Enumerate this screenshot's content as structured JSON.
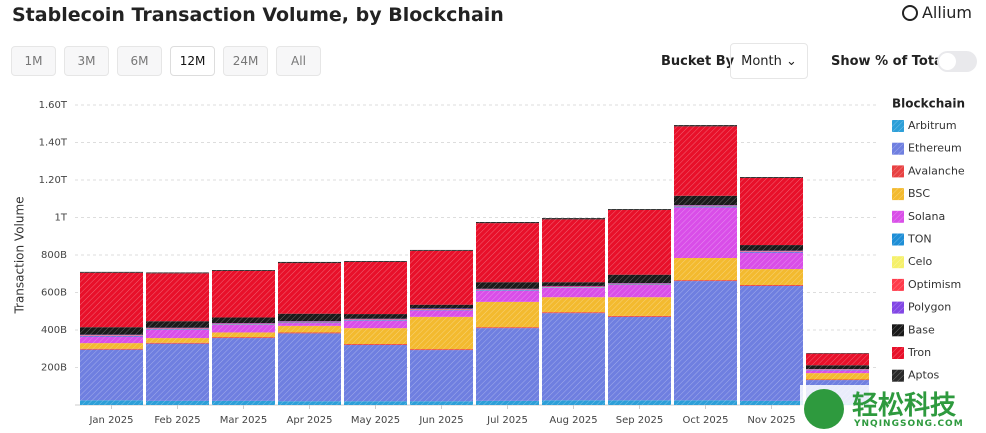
{
  "ui": {
    "logo": "Allium",
    "ranges": [
      "1M",
      "3M",
      "6M",
      "12M",
      "24M",
      "All"
    ],
    "bucket_label": "Bucket By",
    "bucket_value": "Month",
    "percent_label": "Show % of Total"
  },
  "watermark": {
    "text": "轻松科技",
    "url": "YNQINGSONG.COM"
  },
  "chart_data": {
    "type": "stacked-bar",
    "title": "Stablecoin Transaction Volume, by Blockchain",
    "y_label": "Transaction Volume",
    "legend_title": "Blockchain",
    "legend": "right",
    "grid": true,
    "categories": [
      "Jan 2025",
      "Feb 2025",
      "Mar 2025",
      "Apr 2025",
      "May 2025",
      "Jun 2025",
      "Jul 2025",
      "Aug 2025",
      "Sep 2025",
      "Oct 2025",
      "Nov 2025",
      null
    ],
    "ylim": [
      0,
      1600
    ],
    "yticks": [
      {
        "value": 200,
        "label": "200B"
      },
      {
        "value": 400,
        "label": "400B"
      },
      {
        "value": 600,
        "label": "600B"
      },
      {
        "value": 800,
        "label": "800B"
      },
      {
        "value": 1000,
        "label": "1T"
      },
      {
        "value": 1200,
        "label": "1.20T"
      },
      {
        "value": 1400,
        "label": "1.40T"
      },
      {
        "value": 1600,
        "label": "1.60T"
      }
    ],
    "series": [
      {
        "name": "Arbitrum",
        "color": "#2d9fd8",
        "values": [
          25,
          22,
          22,
          20,
          20,
          20,
          22,
          25,
          25,
          25,
          22,
          10
        ]
      },
      {
        "name": "Ethereum",
        "color": "#6f7fe0",
        "values": [
          270,
          305,
          335,
          362,
          300,
          273,
          388,
          465,
          445,
          636,
          613,
          123
        ]
      },
      {
        "name": "Avalanche",
        "color": "#e84142",
        "values": [
          5,
          5,
          5,
          5,
          5,
          5,
          5,
          5,
          5,
          5,
          5,
          3
        ]
      },
      {
        "name": "BSC",
        "color": "#f3ba2f",
        "values": [
          30,
          25,
          25,
          35,
          85,
          172,
          135,
          80,
          100,
          118,
          85,
          34
        ]
      },
      {
        "name": "Solana",
        "color": "#d94ee8",
        "values": [
          35,
          45,
          40,
          15,
          40,
          35,
          60,
          50,
          65,
          270,
          88,
          15
        ]
      },
      {
        "name": "TON",
        "color": "#1e8ed6",
        "values": [
          3,
          3,
          3,
          3,
          3,
          3,
          3,
          3,
          3,
          5,
          3,
          2
        ]
      },
      {
        "name": "Celo",
        "color": "#f5f06a",
        "values": [
          1,
          1,
          1,
          1,
          1,
          1,
          1,
          1,
          1,
          1,
          1,
          1
        ]
      },
      {
        "name": "Optimism",
        "color": "#ff3b4b",
        "values": [
          3,
          3,
          3,
          3,
          3,
          3,
          3,
          3,
          3,
          3,
          3,
          2
        ]
      },
      {
        "name": "Polygon",
        "color": "#8247e5",
        "values": [
          3,
          3,
          3,
          3,
          3,
          3,
          3,
          3,
          3,
          3,
          3,
          2
        ]
      },
      {
        "name": "Base",
        "color": "#1a1a1a",
        "values": [
          40,
          35,
          30,
          40,
          25,
          20,
          35,
          20,
          45,
          50,
          30,
          20
        ]
      },
      {
        "name": "Tron",
        "color": "#e8102a",
        "values": [
          290,
          255,
          248,
          270,
          278,
          287,
          315,
          335,
          345,
          370,
          358,
          62
        ]
      },
      {
        "name": "Aptos",
        "color": "#2a2a2a",
        "values": [
          5,
          5,
          5,
          6,
          5,
          5,
          6,
          7,
          5,
          7,
          5,
          3
        ]
      }
    ]
  }
}
